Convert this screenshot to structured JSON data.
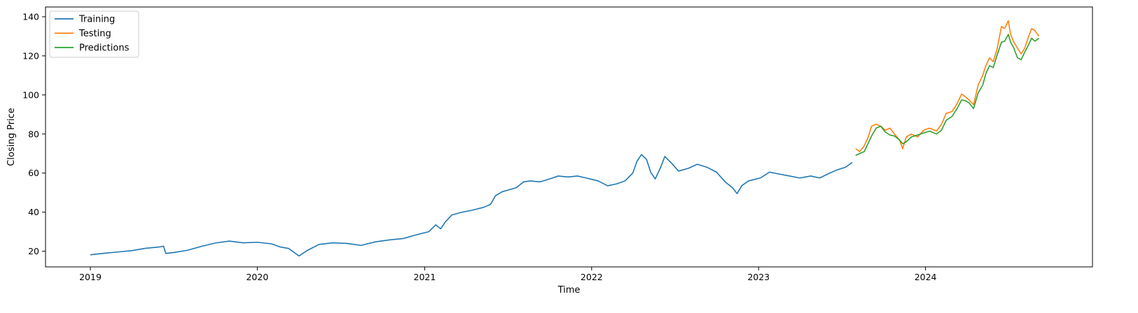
{
  "chart_data": {
    "type": "line",
    "title": "",
    "xlabel": "Time",
    "ylabel": "Closing Price",
    "x_ticks": [
      "2019",
      "2020",
      "2021",
      "2022",
      "2023",
      "2024"
    ],
    "y_ticks": [
      20,
      40,
      60,
      80,
      100,
      120,
      140
    ],
    "xlim": [
      "2018-09-25",
      "2024-12-31"
    ],
    "ylim": [
      12,
      145
    ],
    "grid": false,
    "legend_position": "top-left",
    "series": [
      {
        "name": "Training",
        "color": "#1f77b4",
        "points": [
          [
            "2019-01-01",
            18.2
          ],
          [
            "2019-02-01",
            19.0
          ],
          [
            "2019-03-01",
            19.6
          ],
          [
            "2019-04-01",
            20.3
          ],
          [
            "2019-05-01",
            21.5
          ],
          [
            "2019-06-01",
            22.2
          ],
          [
            "2019-06-10",
            22.6
          ],
          [
            "2019-06-15",
            18.9
          ],
          [
            "2019-07-01",
            19.3
          ],
          [
            "2019-08-01",
            20.5
          ],
          [
            "2019-09-01",
            22.5
          ],
          [
            "2019-10-01",
            24.2
          ],
          [
            "2019-11-01",
            25.2
          ],
          [
            "2019-12-01",
            24.3
          ],
          [
            "2020-01-01",
            24.6
          ],
          [
            "2020-02-01",
            23.8
          ],
          [
            "2020-02-20",
            22.2
          ],
          [
            "2020-03-10",
            21.4
          ],
          [
            "2020-04-01",
            17.6
          ],
          [
            "2020-04-20",
            20.5
          ],
          [
            "2020-05-15",
            23.5
          ],
          [
            "2020-06-15",
            24.3
          ],
          [
            "2020-07-15",
            24.0
          ],
          [
            "2020-08-15",
            23.0
          ],
          [
            "2020-09-15",
            24.8
          ],
          [
            "2020-10-15",
            25.8
          ],
          [
            "2020-11-15",
            26.5
          ],
          [
            "2020-12-15",
            28.5
          ],
          [
            "2021-01-10",
            30.0
          ],
          [
            "2021-01-25",
            33.5
          ],
          [
            "2021-02-05",
            31.5
          ],
          [
            "2021-02-15",
            35.0
          ],
          [
            "2021-03-01",
            38.5
          ],
          [
            "2021-03-20",
            39.8
          ],
          [
            "2021-04-15",
            41.0
          ],
          [
            "2021-05-10",
            42.5
          ],
          [
            "2021-05-25",
            44.0
          ],
          [
            "2021-06-05",
            48.5
          ],
          [
            "2021-06-20",
            50.5
          ],
          [
            "2021-07-05",
            51.5
          ],
          [
            "2021-07-20",
            52.5
          ],
          [
            "2021-08-05",
            55.5
          ],
          [
            "2021-08-20",
            56.0
          ],
          [
            "2021-09-10",
            55.5
          ],
          [
            "2021-10-01",
            57.0
          ],
          [
            "2021-10-20",
            58.5
          ],
          [
            "2021-11-10",
            58.0
          ],
          [
            "2021-12-01",
            58.5
          ],
          [
            "2021-12-20",
            57.5
          ],
          [
            "2022-01-15",
            56.0
          ],
          [
            "2022-02-05",
            53.5
          ],
          [
            "2022-02-25",
            54.5
          ],
          [
            "2022-03-15",
            56.0
          ],
          [
            "2022-04-01",
            60.0
          ],
          [
            "2022-04-10",
            66.0
          ],
          [
            "2022-04-20",
            69.5
          ],
          [
            "2022-05-01",
            67.0
          ],
          [
            "2022-05-10",
            60.5
          ],
          [
            "2022-05-20",
            57.0
          ],
          [
            "2022-06-01",
            63.0
          ],
          [
            "2022-06-10",
            68.5
          ],
          [
            "2022-06-25",
            65.0
          ],
          [
            "2022-07-10",
            61.0
          ],
          [
            "2022-08-01",
            62.5
          ],
          [
            "2022-08-20",
            64.5
          ],
          [
            "2022-09-10",
            63.0
          ],
          [
            "2022-10-01",
            60.5
          ],
          [
            "2022-10-20",
            55.5
          ],
          [
            "2022-11-05",
            52.5
          ],
          [
            "2022-11-15",
            49.5
          ],
          [
            "2022-11-25",
            53.5
          ],
          [
            "2022-12-10",
            56.0
          ],
          [
            "2023-01-05",
            57.5
          ],
          [
            "2023-01-25",
            60.5
          ],
          [
            "2023-02-15",
            59.5
          ],
          [
            "2023-03-10",
            58.5
          ],
          [
            "2023-04-01",
            57.5
          ],
          [
            "2023-04-25",
            58.5
          ],
          [
            "2023-05-15",
            57.5
          ],
          [
            "2023-06-01",
            59.5
          ],
          [
            "2023-06-20",
            61.5
          ],
          [
            "2023-07-10",
            63.0
          ],
          [
            "2023-07-25",
            65.5
          ]
        ]
      },
      {
        "name": "Testing",
        "color": "#ff7f0e",
        "points": [
          [
            "2023-08-01",
            72.5
          ],
          [
            "2023-08-10",
            71.0
          ],
          [
            "2023-08-20",
            74.0
          ],
          [
            "2023-08-28",
            78.0
          ],
          [
            "2023-09-05",
            84.0
          ],
          [
            "2023-09-15",
            85.0
          ],
          [
            "2023-09-25",
            84.0
          ],
          [
            "2023-10-05",
            82.0
          ],
          [
            "2023-10-15",
            83.0
          ],
          [
            "2023-10-25",
            80.0
          ],
          [
            "2023-11-05",
            77.0
          ],
          [
            "2023-11-12",
            72.5
          ],
          [
            "2023-11-20",
            78.5
          ],
          [
            "2023-12-01",
            80.0
          ],
          [
            "2023-12-15",
            78.5
          ],
          [
            "2023-12-28",
            82.0
          ],
          [
            "2024-01-10",
            83.0
          ],
          [
            "2024-01-25",
            81.5
          ],
          [
            "2024-02-05",
            85.0
          ],
          [
            "2024-02-15",
            90.5
          ],
          [
            "2024-02-28",
            91.5
          ],
          [
            "2024-03-10",
            95.5
          ],
          [
            "2024-03-20",
            100.5
          ],
          [
            "2024-03-28",
            99.0
          ],
          [
            "2024-04-05",
            97.5
          ],
          [
            "2024-04-15",
            95.0
          ],
          [
            "2024-04-25",
            105.0
          ],
          [
            "2024-05-05",
            110.0
          ],
          [
            "2024-05-12",
            115.0
          ],
          [
            "2024-05-20",
            119.0
          ],
          [
            "2024-05-28",
            117.0
          ],
          [
            "2024-06-05",
            123.0
          ],
          [
            "2024-06-15",
            135.0
          ],
          [
            "2024-06-22",
            134.0
          ],
          [
            "2024-06-30",
            138.0
          ],
          [
            "2024-07-05",
            131.0
          ],
          [
            "2024-07-12",
            127.0
          ],
          [
            "2024-07-20",
            124.0
          ],
          [
            "2024-07-28",
            121.0
          ],
          [
            "2024-08-05",
            124.0
          ],
          [
            "2024-08-12",
            129.0
          ],
          [
            "2024-08-20",
            134.0
          ],
          [
            "2024-08-27",
            133.0
          ],
          [
            "2024-09-05",
            130.0
          ]
        ]
      },
      {
        "name": "Predictions",
        "color": "#2ca02c",
        "points": [
          [
            "2023-08-01",
            69.0
          ],
          [
            "2023-08-10",
            70.0
          ],
          [
            "2023-08-20",
            71.0
          ],
          [
            "2023-08-28",
            75.0
          ],
          [
            "2023-09-05",
            79.0
          ],
          [
            "2023-09-15",
            83.0
          ],
          [
            "2023-09-25",
            84.0
          ],
          [
            "2023-10-05",
            81.0
          ],
          [
            "2023-10-15",
            79.5
          ],
          [
            "2023-10-25",
            79.0
          ],
          [
            "2023-11-05",
            77.0
          ],
          [
            "2023-11-12",
            75.0
          ],
          [
            "2023-11-20",
            76.0
          ],
          [
            "2023-12-01",
            78.5
          ],
          [
            "2023-12-15",
            79.5
          ],
          [
            "2023-12-28",
            80.5
          ],
          [
            "2024-01-10",
            81.5
          ],
          [
            "2024-01-25",
            80.0
          ],
          [
            "2024-02-05",
            82.0
          ],
          [
            "2024-02-15",
            87.0
          ],
          [
            "2024-02-28",
            89.0
          ],
          [
            "2024-03-10",
            93.0
          ],
          [
            "2024-03-20",
            97.5
          ],
          [
            "2024-03-28",
            97.0
          ],
          [
            "2024-04-05",
            96.0
          ],
          [
            "2024-04-15",
            93.0
          ],
          [
            "2024-04-25",
            101.0
          ],
          [
            "2024-05-05",
            105.0
          ],
          [
            "2024-05-12",
            111.0
          ],
          [
            "2024-05-20",
            115.0
          ],
          [
            "2024-05-28",
            114.0
          ],
          [
            "2024-06-05",
            120.0
          ],
          [
            "2024-06-15",
            127.0
          ],
          [
            "2024-06-22",
            127.5
          ],
          [
            "2024-06-30",
            131.0
          ],
          [
            "2024-07-05",
            127.0
          ],
          [
            "2024-07-12",
            124.0
          ],
          [
            "2024-07-20",
            119.0
          ],
          [
            "2024-07-28",
            118.0
          ],
          [
            "2024-08-05",
            122.0
          ],
          [
            "2024-08-12",
            125.0
          ],
          [
            "2024-08-20",
            129.0
          ],
          [
            "2024-08-27",
            127.5
          ],
          [
            "2024-09-05",
            129.0
          ]
        ]
      }
    ]
  }
}
